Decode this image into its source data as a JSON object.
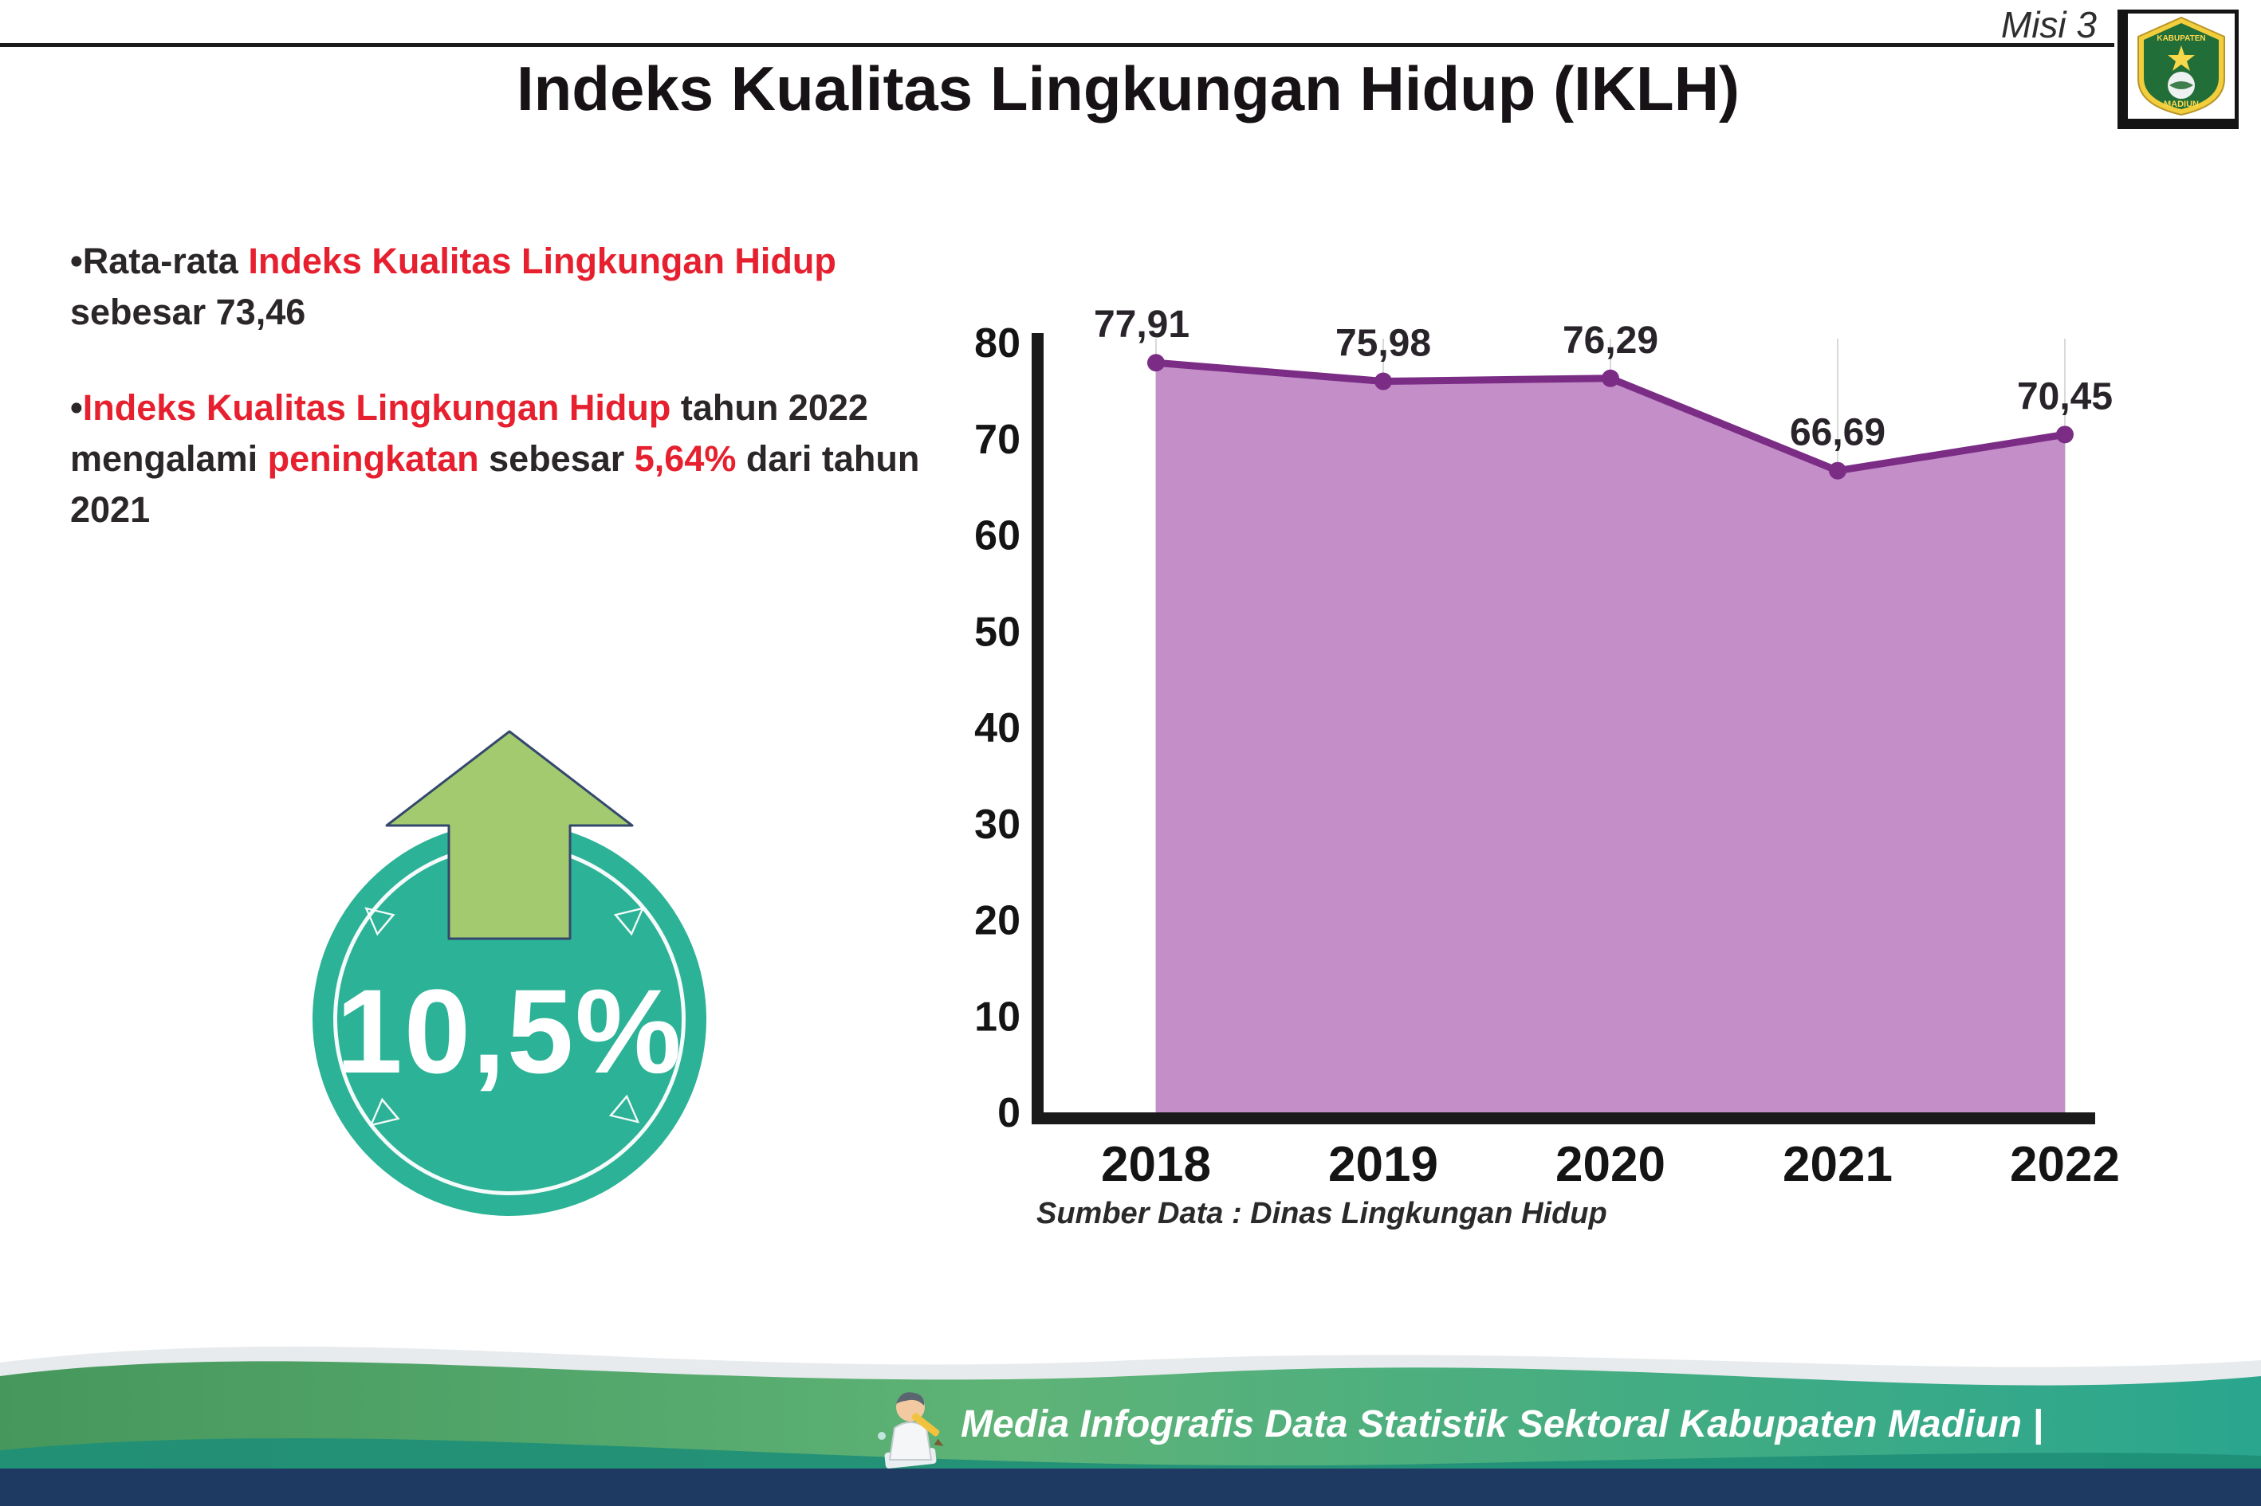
{
  "page": {
    "misi": "Misi 3",
    "title": "Indeks Kualitas Lingkungan Hidup (IKLH)"
  },
  "logo": {
    "text_top": "KABUPATEN",
    "text_bottom": "MADIUN"
  },
  "bullet1": {
    "p1": "Rata-rata ",
    "p2": "Indeks Kualitas Lingkungan Hidup",
    "p3": " sebesar 73,46"
  },
  "bullet2": {
    "p1": "Indeks Kualitas Lingkungan Hidup",
    "p2": " tahun 2022 mengalami ",
    "p3": "peningkatan",
    "p4": " sebesar ",
    "p5": "5,64%",
    "p6": " dari tahun 2021"
  },
  "badge": {
    "value": "10,5%"
  },
  "chart_data": {
    "type": "area",
    "categories": [
      "2018",
      "2019",
      "2020",
      "2021",
      "2022"
    ],
    "values": [
      77.91,
      75.98,
      76.29,
      66.69,
      70.45
    ],
    "point_labels": [
      "77,91",
      "75,98",
      "76,29",
      "66,69",
      "70,45"
    ],
    "ylim": [
      0,
      80
    ],
    "yticks": [
      0,
      10,
      20,
      30,
      40,
      50,
      60,
      70,
      80
    ],
    "grid": "vertical",
    "line_color": "#7b2d86",
    "fill_color": "#c48fc9",
    "source": "Sumber Data : Dinas Lingkungan Hidup"
  },
  "footer": {
    "text": "Media Infografis Data Statistik Sektoral Kabupaten Madiun |"
  },
  "colors": {
    "red_accent": "#e6202e",
    "teal_circle": "#2cb296",
    "arrow_green": "#a4ca70",
    "navy_bar": "#1e3a62",
    "chart_line": "#7b2d86",
    "chart_fill": "#c48fc9"
  }
}
